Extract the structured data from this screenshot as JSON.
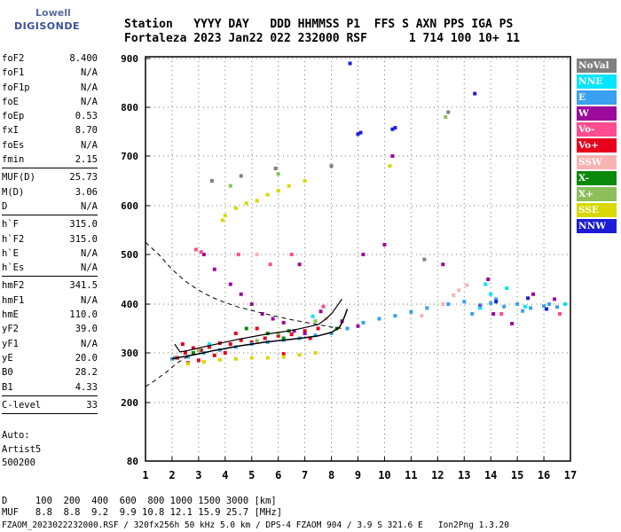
{
  "logo": {
    "line1": "Lowell",
    "line2": "DIGISONDE"
  },
  "header": {
    "line1": "Station   YYYY DAY   DDD HHMMSS P1  FFS S AXN PPS IGA PS",
    "line2": "Fortaleza 2023 Jan22 022 232000 RSF      1 714 100 10+ 11"
  },
  "params": {
    "group1": [
      {
        "name": "foF2",
        "value": "8.400"
      },
      {
        "name": "foF1",
        "value": "N/A"
      },
      {
        "name": "foF1p",
        "value": "N/A"
      },
      {
        "name": "foE",
        "value": "N/A"
      },
      {
        "name": "foEp",
        "value": "0.53"
      },
      {
        "name": "fxI",
        "value": "8.70"
      },
      {
        "name": "foEs",
        "value": "N/A"
      },
      {
        "name": "fmin",
        "value": "2.15"
      }
    ],
    "group2": [
      {
        "name": "MUF(D)",
        "value": "25.73"
      },
      {
        "name": "M(D)",
        "value": "3.06"
      },
      {
        "name": "D",
        "value": "N/A"
      }
    ],
    "group3": [
      {
        "name": "h`F",
        "value": "315.0"
      },
      {
        "name": "h`F2",
        "value": "315.0"
      },
      {
        "name": "h`E",
        "value": "N/A"
      },
      {
        "name": "h`Es",
        "value": "N/A"
      }
    ],
    "group4": [
      {
        "name": "hmF2",
        "value": "341.5"
      },
      {
        "name": "hmF1",
        "value": "N/A"
      },
      {
        "name": "hmE",
        "value": "110.0"
      },
      {
        "name": "yF2",
        "value": "39.0"
      },
      {
        "name": "yF1",
        "value": "N/A"
      },
      {
        "name": "yE",
        "value": "20.0"
      },
      {
        "name": "B0",
        "value": "28.2"
      },
      {
        "name": "B1",
        "value": "4.33"
      }
    ],
    "group5": [
      {
        "name": "C-level",
        "value": "33"
      }
    ]
  },
  "auto": {
    "line1": "Auto:",
    "line2": "Artist5",
    "line3": "500200"
  },
  "legend": [
    {
      "label": "NoVal",
      "color": "#808080"
    },
    {
      "label": "NNE",
      "color": "#00e5ff"
    },
    {
      "label": "E",
      "color": "#3aa0f0"
    },
    {
      "label": "W",
      "color": "#9c0a9c"
    },
    {
      "label": "Vo-",
      "color": "#ff4d8f"
    },
    {
      "label": "Vo+",
      "color": "#e8001c"
    },
    {
      "label": "SSW",
      "color": "#f7b2b2"
    },
    {
      "label": "X-",
      "color": "#0a8a0a"
    },
    {
      "label": "X+",
      "color": "#8cbf5a"
    },
    {
      "label": "SSE",
      "color": "#d8d800"
    },
    {
      "label": "NNW",
      "color": "#1c1cd8"
    }
  ],
  "footer": {
    "line1": "D     100  200  400  600  800 1000 1500 3000 [km]",
    "line2": "MUF   8.8  8.8  9.2  9.9 10.8 12.1 15.9 25.7 [MHz]",
    "line3": "FZAOM_2023022232000.RSF / 320fx256h 50 kHz 5.0 km / DPS-4 FZAOM 904 / 3.9 S 321.6 E   Ion2Png 1.3.20"
  },
  "chart_data": {
    "type": "scatter",
    "xlim": [
      1,
      17
    ],
    "ylim": [
      80,
      900
    ],
    "x_ticks": [
      "1",
      "2",
      "3",
      "4",
      "5",
      "6",
      "7",
      "8",
      "9",
      "10",
      "11",
      "12",
      "13",
      "14",
      "15",
      "16",
      "17"
    ],
    "y_ticks": [
      "80",
      "200",
      "300",
      "400",
      "500",
      "600",
      "700",
      "800",
      "900"
    ],
    "grid": true,
    "series": [
      {
        "name": "Vo+",
        "color": "#e8001c",
        "points": [
          [
            2.2,
            290
          ],
          [
            2.5,
            300
          ],
          [
            2.8,
            310
          ],
          [
            3.1,
            305
          ],
          [
            3.4,
            312
          ],
          [
            3.8,
            320
          ],
          [
            4.2,
            318
          ],
          [
            4.6,
            326
          ],
          [
            5.0,
            322
          ],
          [
            5.5,
            330
          ],
          [
            6.0,
            335
          ],
          [
            6.5,
            338
          ],
          [
            7.0,
            345
          ],
          [
            7.5,
            350
          ],
          [
            2.6,
            280
          ],
          [
            3.0,
            285
          ],
          [
            4.0,
            300
          ],
          [
            4.4,
            340
          ],
          [
            5.2,
            350
          ],
          [
            6.2,
            298
          ],
          [
            7.2,
            330
          ],
          [
            2.4,
            318
          ],
          [
            3.6,
            295
          ]
        ]
      },
      {
        "name": "SSE",
        "color": "#d8d800",
        "points": [
          [
            2.6,
            278
          ],
          [
            3.2,
            282
          ],
          [
            3.8,
            286
          ],
          [
            4.4,
            288
          ],
          [
            5.0,
            290
          ],
          [
            5.6,
            290
          ],
          [
            6.2,
            292
          ],
          [
            6.8,
            296
          ],
          [
            7.4,
            300
          ],
          [
            4.0,
            580
          ],
          [
            4.4,
            595
          ],
          [
            4.8,
            605
          ],
          [
            5.2,
            610
          ],
          [
            5.6,
            622
          ],
          [
            6.0,
            630
          ],
          [
            3.9,
            570
          ],
          [
            6.4,
            640
          ],
          [
            7.0,
            650
          ],
          [
            10.2,
            680
          ]
        ]
      },
      {
        "name": "E",
        "color": "#3aa0f0",
        "points": [
          [
            2.0,
            288
          ],
          [
            2.6,
            292
          ],
          [
            3.2,
            300
          ],
          [
            3.8,
            306
          ],
          [
            4.4,
            312
          ],
          [
            5.0,
            318
          ],
          [
            5.6,
            322
          ],
          [
            6.2,
            326
          ],
          [
            6.8,
            330
          ],
          [
            7.4,
            336
          ],
          [
            8.0,
            340
          ],
          [
            8.6,
            350
          ],
          [
            9.2,
            362
          ],
          [
            9.8,
            370
          ],
          [
            10.4,
            376
          ],
          [
            11.0,
            384
          ],
          [
            11.6,
            392
          ],
          [
            12.4,
            400
          ],
          [
            13.0,
            405
          ],
          [
            13.6,
            398
          ],
          [
            14.0,
            402
          ],
          [
            14.5,
            395
          ],
          [
            15.0,
            400
          ],
          [
            15.5,
            392
          ],
          [
            16.0,
            396
          ],
          [
            16.5,
            394
          ],
          [
            13.3,
            380
          ],
          [
            14.2,
            410
          ],
          [
            15.2,
            386
          ],
          [
            16.2,
            400
          ]
        ]
      },
      {
        "name": "W",
        "color": "#9c0a9c",
        "points": [
          [
            3.2,
            500
          ],
          [
            3.6,
            470
          ],
          [
            4.2,
            440
          ],
          [
            4.6,
            420
          ],
          [
            5.0,
            400
          ],
          [
            5.4,
            380
          ],
          [
            5.8,
            370
          ],
          [
            6.2,
            362
          ],
          [
            6.6,
            345
          ],
          [
            7.0,
            340
          ],
          [
            7.6,
            385
          ],
          [
            8.4,
            365
          ],
          [
            9.0,
            355
          ],
          [
            9.2,
            500
          ],
          [
            10.0,
            520
          ],
          [
            13.6,
            395
          ],
          [
            14.1,
            380
          ],
          [
            14.8,
            360
          ],
          [
            15.6,
            420
          ],
          [
            16.4,
            410
          ],
          [
            10.3,
            700
          ],
          [
            12.2,
            480
          ],
          [
            6.8,
            480
          ],
          [
            13.9,
            450
          ]
        ]
      },
      {
        "name": "NNW",
        "color": "#1c1cd8",
        "points": [
          [
            9.0,
            745
          ],
          [
            9.1,
            748
          ],
          [
            10.3,
            755
          ],
          [
            10.4,
            758
          ],
          [
            8.7,
            890
          ],
          [
            13.4,
            828
          ],
          [
            14.2,
            405
          ],
          [
            15.4,
            412
          ],
          [
            16.1,
            390
          ]
        ]
      },
      {
        "name": "X-",
        "color": "#0a8a0a",
        "points": [
          [
            4.8,
            350
          ],
          [
            5.6,
            340
          ],
          [
            6.2,
            330
          ],
          [
            6.4,
            345
          ],
          [
            8.2,
            350
          ],
          [
            2.8,
            300
          ]
        ]
      },
      {
        "name": "X+",
        "color": "#8cbf5a",
        "points": [
          [
            3.0,
            305
          ],
          [
            5.2,
            325
          ],
          [
            6.0,
            340
          ],
          [
            7.4,
            365
          ],
          [
            4.2,
            640
          ],
          [
            6.0,
            664
          ],
          [
            12.3,
            780
          ]
        ]
      },
      {
        "name": "SSW",
        "color": "#f7b2b2",
        "points": [
          [
            12.2,
            400
          ],
          [
            12.6,
            418
          ],
          [
            12.8,
            428
          ],
          [
            13.1,
            438
          ],
          [
            11.4,
            376
          ],
          [
            7.8,
            370
          ],
          [
            5.2,
            500
          ]
        ]
      },
      {
        "name": "NNE",
        "color": "#00e5ff",
        "points": [
          [
            13.8,
            440
          ],
          [
            14.0,
            420
          ],
          [
            14.6,
            432
          ],
          [
            13.6,
            392
          ],
          [
            15.3,
            395
          ],
          [
            16.8,
            400
          ],
          [
            7.3,
            375
          ],
          [
            3.4,
            318
          ]
        ]
      },
      {
        "name": "Vo-",
        "color": "#ff4d8f",
        "points": [
          [
            2.9,
            510
          ],
          [
            3.1,
            505
          ],
          [
            4.5,
            500
          ],
          [
            5.7,
            480
          ],
          [
            6.5,
            500
          ],
          [
            7.7,
            395
          ],
          [
            14.4,
            380
          ],
          [
            16.6,
            380
          ]
        ]
      },
      {
        "name": "NoVal",
        "color": "#808080",
        "points": [
          [
            2.1,
            290
          ],
          [
            3.5,
            650
          ],
          [
            4.6,
            660
          ],
          [
            5.9,
            675
          ],
          [
            8.0,
            680
          ],
          [
            11.5,
            490
          ],
          [
            12.4,
            790
          ]
        ]
      }
    ],
    "profile_solid": [
      [
        2.0,
        288
      ],
      [
        2.5,
        293
      ],
      [
        3.0,
        298
      ],
      [
        3.5,
        304
      ],
      [
        4.0,
        309
      ],
      [
        4.5,
        314
      ],
      [
        5.0,
        318
      ],
      [
        5.5,
        322
      ],
      [
        6.0,
        325
      ],
      [
        6.5,
        328
      ],
      [
        7.0,
        331
      ],
      [
        7.5,
        335
      ],
      [
        8.0,
        342
      ],
      [
        8.3,
        352
      ],
      [
        8.4,
        362
      ],
      [
        8.5,
        375
      ],
      [
        8.6,
        390
      ]
    ],
    "profile_dashed": [
      [
        1.0,
        525
      ],
      [
        1.5,
        500
      ],
      [
        2.0,
        470
      ],
      [
        2.5,
        446
      ],
      [
        3.0,
        428
      ],
      [
        3.5,
        414
      ],
      [
        4.0,
        403
      ],
      [
        4.5,
        394
      ],
      [
        5.0,
        387
      ],
      [
        5.5,
        380
      ],
      [
        6.0,
        374
      ],
      [
        6.5,
        368
      ],
      [
        7.0,
        363
      ],
      [
        7.5,
        358
      ],
      [
        8.0,
        353
      ],
      [
        8.4,
        350
      ]
    ],
    "profile_dashed_lower": [
      [
        1.0,
        232
      ],
      [
        1.4,
        246
      ],
      [
        1.8,
        262
      ],
      [
        2.2,
        280
      ],
      [
        2.6,
        293
      ],
      [
        3.0,
        300
      ]
    ],
    "trace_black": [
      [
        2.1,
        318
      ],
      [
        2.3,
        302
      ],
      [
        2.6,
        305
      ],
      [
        3.0,
        310
      ],
      [
        3.5,
        316
      ],
      [
        4.0,
        322
      ],
      [
        4.5,
        328
      ],
      [
        5.0,
        333
      ],
      [
        5.5,
        338
      ],
      [
        6.0,
        342
      ],
      [
        6.5,
        346
      ],
      [
        7.0,
        352
      ],
      [
        7.5,
        358
      ],
      [
        7.8,
        370
      ],
      [
        8.0,
        380
      ],
      [
        8.2,
        395
      ],
      [
        8.4,
        410
      ]
    ]
  }
}
